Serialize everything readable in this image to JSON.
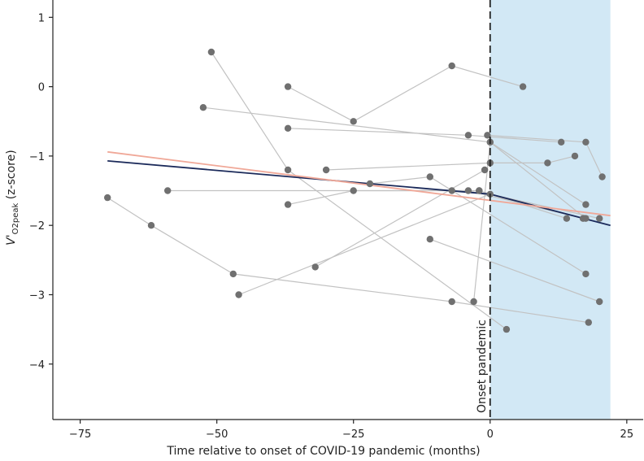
{
  "chart_data": {
    "type": "scatter",
    "title": "",
    "xlabel": "Time relative to onset of COVID-19 pandemic (months)",
    "ylabel_main": "V'",
    "ylabel_subscript": "O2peak",
    "ylabel_suffix": " (z-score)",
    "xlim": [
      -80,
      28
    ],
    "ylim": [
      -4.8,
      1.25
    ],
    "xticks": [
      -75,
      -50,
      -25,
      0,
      25
    ],
    "xtick_labels": [
      "−75",
      "−50",
      "−25",
      "0",
      "25"
    ],
    "yticks": [
      1,
      0,
      -1,
      -2,
      -3,
      -4
    ],
    "ytick_labels": [
      "1",
      "0",
      "−1",
      "−2",
      "−3",
      "−4"
    ],
    "shaded_region": {
      "x_start": 0,
      "x_end": 22,
      "color": "#d2e8f5"
    },
    "vline": {
      "x": 0,
      "label": "Onset pandemic"
    },
    "colors": {
      "point": "#707070",
      "connector": "#c2c2c2",
      "fit_navy": "#1b2a5a",
      "fit_salmon": "#f0a898",
      "axis": "#222222"
    },
    "subjects": [
      [
        [
          -70,
          -1.6
        ],
        [
          -62,
          -2.0
        ],
        [
          -47,
          -2.7
        ],
        [
          -7,
          -3.1
        ],
        [
          18,
          -3.4
        ]
      ],
      [
        [
          -51,
          0.5
        ],
        [
          -37,
          -1.2
        ],
        [
          3,
          -3.5
        ]
      ],
      [
        [
          -37,
          0.0
        ],
        [
          -25,
          -0.5
        ],
        [
          -7,
          0.3
        ],
        [
          6,
          0.0
        ]
      ],
      [
        [
          -52.5,
          -0.3
        ],
        [
          0,
          -0.8
        ],
        [
          17.5,
          -1.7
        ]
      ],
      [
        [
          -37,
          -0.6
        ],
        [
          -4,
          -0.7
        ],
        [
          13,
          -0.8
        ]
      ],
      [
        [
          -59,
          -1.5
        ],
        [
          -2,
          -1.5
        ]
      ],
      [
        [
          -37,
          -1.7
        ],
        [
          -25,
          -1.5
        ],
        [
          -7,
          -1.5
        ],
        [
          -4,
          -1.5
        ],
        [
          17,
          -1.9
        ]
      ],
      [
        [
          -30,
          -1.2
        ],
        [
          0,
          -1.1
        ],
        [
          10.5,
          -1.1
        ],
        [
          15.5,
          -1.0
        ]
      ],
      [
        [
          -22,
          -1.4
        ],
        [
          -11,
          -1.3
        ],
        [
          17.5,
          -2.7
        ]
      ],
      [
        [
          -32,
          -2.6
        ],
        [
          -1,
          -1.2
        ]
      ],
      [
        [
          -46,
          -3.0
        ],
        [
          0,
          -1.55
        ],
        [
          20,
          -1.9
        ]
      ],
      [
        [
          -11,
          -2.2
        ],
        [
          20,
          -3.1
        ]
      ],
      [
        [
          -3,
          -3.1
        ],
        [
          0,
          -0.8
        ],
        [
          17.5,
          -1.9
        ]
      ],
      [
        [
          -0.5,
          -0.7
        ],
        [
          17.5,
          -0.8
        ],
        [
          20.5,
          -1.3
        ]
      ],
      [
        [
          -2,
          -1.5
        ],
        [
          14,
          -1.9
        ]
      ]
    ],
    "series": [
      {
        "name": "fit-navy",
        "x": [
          -70,
          0,
          22
        ],
        "y": [
          -1.07,
          -1.55,
          -2.0
        ]
      },
      {
        "name": "fit-salmon",
        "x": [
          -70,
          22
        ],
        "y": [
          -0.94,
          -1.86
        ]
      }
    ]
  }
}
